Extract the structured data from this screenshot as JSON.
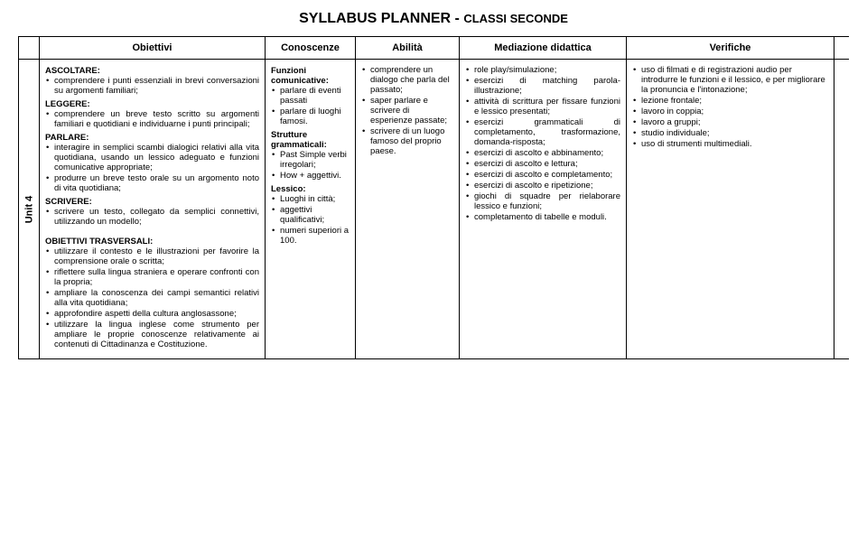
{
  "title_main": "SYLLABUS PLANNER",
  "title_sep": " - ",
  "title_sub": "CLASSI SECONDE",
  "headers": {
    "obiettivi": "Obiettivi",
    "conoscenze": "Conoscenze",
    "abilita": "Abilità",
    "mediazione": "Mediazione didattica",
    "verifiche": "Verifiche"
  },
  "unit_label": "Unit 4",
  "obiettivi": {
    "ascoltare_head": "ASCOLTARE:",
    "ascoltare": [
      "comprendere i punti essenziali in brevi conversazioni su argomenti familiari;"
    ],
    "leggere_head": "LEGGERE:",
    "leggere": [
      "comprendere un breve testo scritto su argomenti familiari e quotidiani e individuarne i punti principali;"
    ],
    "parlare_head": "PARLARE:",
    "parlare": [
      "interagire in semplici scambi dialogici relativi alla vita quotidiana, usando un lessico adeguato e funzioni comunicative appropriate;",
      "produrre un breve testo orale su un argomento noto di vita quotidiana;"
    ],
    "scrivere_head": "SCRIVERE:",
    "scrivere": [
      "scrivere un testo, collegato da semplici connettivi, utilizzando un modello;"
    ],
    "trasversali_head": "OBIETTIVI TRASVERSALI:",
    "trasversali": [
      "utilizzare il contesto e le illustrazioni per favorire la comprensione orale o scritta;",
      "riflettere sulla lingua straniera e operare confronti con la propria;",
      "ampliare la conoscenza dei campi semantici relativi alla vita quotidiana;",
      "approfondire aspetti della cultura anglosassone;",
      "utilizzare la lingua inglese  come strumento per ampliare le proprie conoscenze relativamente ai contenuti di Cittadinanza e Costituzione."
    ]
  },
  "conoscenze": {
    "funzioni_head": "Funzioni comunicative:",
    "funzioni": [
      "parlare di eventi passati",
      "parlare di luoghi famosi."
    ],
    "strutture_head": "Strutture grammaticali:",
    "strutture": [
      "Past Simple verbi irregolari;",
      "How + aggettivi."
    ],
    "lessico_head": "Lessico:",
    "lessico": [
      "Luoghi in città;",
      "aggettivi qualificativi;",
      "numeri superiori a 100."
    ]
  },
  "abilita": [
    "comprendere un dialogo che parla del passato;",
    "saper parlare e scrivere di esperienze passate;",
    "scrivere di un luogo famoso del proprio paese."
  ],
  "mediazione": [
    "role play/simulazione;",
    "esercizi di matching parola-illustrazione;",
    "attività di scrittura per fissare funzioni e lessico presentati;",
    "esercizi grammaticali di completamento, trasformazione, domanda-risposta;",
    "esercizi di ascolto e abbinamento;",
    "esercizi di ascolto e lettura;",
    "esercizi di ascolto e completamento;",
    "esercizi di ascolto e ripetizione;",
    "giochi di squadre per rielaborare lessico e funzioni;",
    "completamento di tabelle e moduli."
  ],
  "verifiche": [
    "uso di filmati e di registrazioni audio per introdurre le funzioni e il lessico, e per migliorare la pronuncia e l'intonazione;",
    "lezione frontale;",
    "lavoro in coppia;",
    "lavoro a gruppi;",
    "studio individuale;",
    "uso di strumenti multimediali."
  ]
}
